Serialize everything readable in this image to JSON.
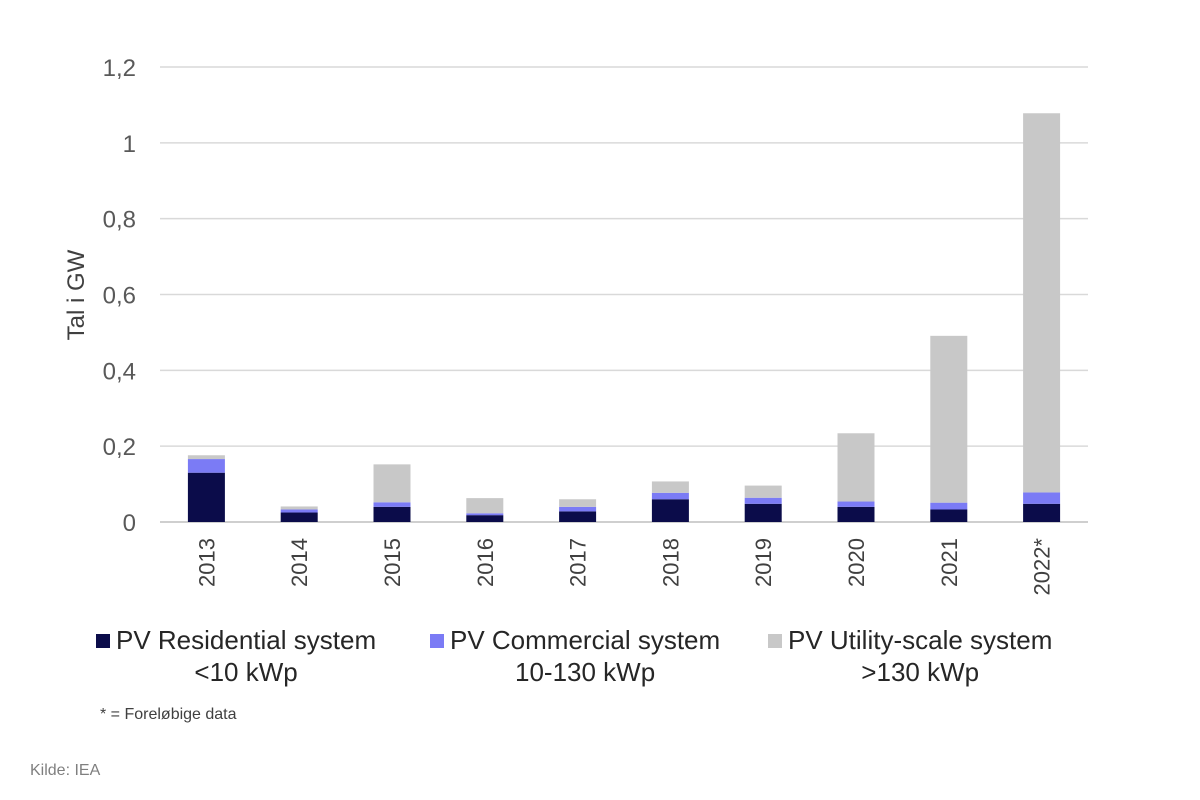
{
  "chart_data": {
    "type": "bar",
    "stacked": true,
    "ylabel": "Tal i GW",
    "xlabel": "",
    "ylim": [
      0,
      1.2
    ],
    "yticks": [
      0,
      0.2,
      0.4,
      0.6,
      0.8,
      1,
      1.2
    ],
    "ytick_labels": [
      "0",
      "0,2",
      "0,4",
      "0,6",
      "0,8",
      "1",
      "1,2"
    ],
    "grid": true,
    "categories": [
      "2013",
      "2014",
      "2015",
      "2016",
      "2017",
      "2018",
      "2019",
      "2020",
      "2021",
      "2022*"
    ],
    "series": [
      {
        "name": "PV Residential system <10 kWp",
        "color": "#0b0c4a",
        "values": [
          0.13,
          0.025,
          0.04,
          0.018,
          0.028,
          0.06,
          0.048,
          0.04,
          0.033,
          0.048
        ]
      },
      {
        "name": "PV Commercial system 10-130 kWp",
        "color": "#7b7bf5",
        "values": [
          0.036,
          0.008,
          0.012,
          0.005,
          0.012,
          0.017,
          0.016,
          0.014,
          0.018,
          0.03
        ]
      },
      {
        "name": "PV Utility-scale system >130 kWp",
        "color": "#c8c8c8",
        "values": [
          0.01,
          0.008,
          0.1,
          0.04,
          0.02,
          0.03,
          0.032,
          0.18,
          0.44,
          1.0
        ]
      }
    ],
    "legend_position": "bottom"
  },
  "legend": [
    {
      "line1": "PV Residential system",
      "line2": "<10 kWp",
      "color": "#0b0c4a"
    },
    {
      "line1": "PV Commercial system",
      "line2": "10-130 kWp",
      "color": "#7b7bf5"
    },
    {
      "line1": "PV Utility-scale system",
      "line2": ">130 kWp",
      "color": "#c8c8c8"
    }
  ],
  "footnote": "* = Foreløbige data",
  "source": "Kilde: IEA"
}
